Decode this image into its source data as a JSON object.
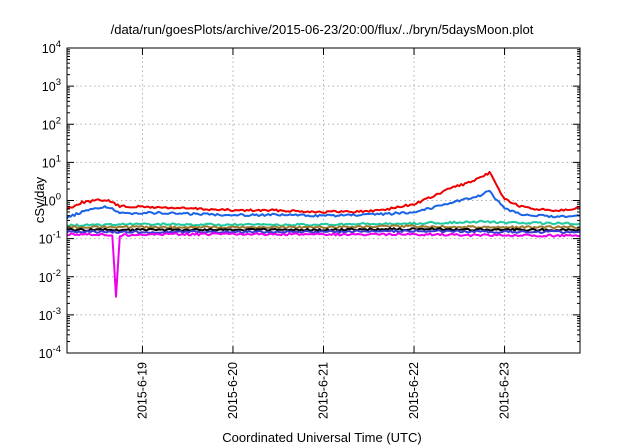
{
  "chart_data": {
    "type": "line",
    "title": "/data/run/goesPlots/archive/2015-06-23/20:00/flux/../bryn/5daysMoon.plot",
    "xlabel": "Coordinated Universal Time (UTC)",
    "ylabel": "cSv/day",
    "yscale": "log",
    "ylim": [
      0.0001,
      10000
    ],
    "xlim": [
      "2015-06-18T04:00",
      "2015-06-23T20:00"
    ],
    "grid": true,
    "y_ticks": [
      {
        "base": "10",
        "exp": "4",
        "value": 10000
      },
      {
        "base": "10",
        "exp": "3",
        "value": 1000
      },
      {
        "base": "10",
        "exp": "2",
        "value": 100
      },
      {
        "base": "10",
        "exp": "1",
        "value": 10
      },
      {
        "base": "10",
        "exp": "0",
        "value": 1
      },
      {
        "base": "10",
        "exp": "-1",
        "value": 0.1
      },
      {
        "base": "10",
        "exp": "-2",
        "value": 0.01
      },
      {
        "base": "10",
        "exp": "-3",
        "value": 0.001
      },
      {
        "base": "10",
        "exp": "-4",
        "value": 0.0001
      }
    ],
    "x_ticks": [
      {
        "label": "2015-6-19",
        "value": "2015-06-19T00:00"
      },
      {
        "label": "2015-6-20",
        "value": "2015-06-20T00:00"
      },
      {
        "label": "2015-6-21",
        "value": "2015-06-21T00:00"
      },
      {
        "label": "2015-6-22",
        "value": "2015-06-22T00:00"
      },
      {
        "label": "2015-6-23",
        "value": "2015-06-23T00:00"
      }
    ],
    "series": [
      {
        "color": "#ee0000",
        "x": [
          "2015-06-18T04:00",
          "2015-06-18T08:00",
          "2015-06-18T14:00",
          "2015-06-18T16:00",
          "2015-06-18T18:00",
          "2015-06-19T00:00",
          "2015-06-19T12:00",
          "2015-06-20T00:00",
          "2015-06-20T12:00",
          "2015-06-21T00:00",
          "2015-06-21T12:00",
          "2015-06-21T18:00",
          "2015-06-22T00:00",
          "2015-06-22T06:00",
          "2015-06-22T10:00",
          "2015-06-22T14:00",
          "2015-06-22T18:00",
          "2015-06-22T20:00",
          "2015-06-22T22:00",
          "2015-06-23T00:00",
          "2015-06-23T04:00",
          "2015-06-23T08:00",
          "2015-06-23T14:00",
          "2015-06-23T20:00"
        ],
        "values": [
          0.6,
          0.9,
          1.05,
          0.9,
          0.7,
          0.68,
          0.62,
          0.55,
          0.55,
          0.5,
          0.52,
          0.62,
          0.8,
          1.4,
          2.2,
          2.8,
          4.0,
          5.5,
          2.4,
          1.1,
          0.7,
          0.6,
          0.55,
          0.65
        ]
      },
      {
        "color": "#1a63e6",
        "x": [
          "2015-06-18T04:00",
          "2015-06-18T08:00",
          "2015-06-18T14:00",
          "2015-06-18T16:00",
          "2015-06-18T18:00",
          "2015-06-19T00:00",
          "2015-06-19T12:00",
          "2015-06-20T00:00",
          "2015-06-20T12:00",
          "2015-06-21T00:00",
          "2015-06-21T12:00",
          "2015-06-21T18:00",
          "2015-06-22T00:00",
          "2015-06-22T06:00",
          "2015-06-22T10:00",
          "2015-06-22T14:00",
          "2015-06-22T18:00",
          "2015-06-22T20:00",
          "2015-06-22T22:00",
          "2015-06-23T00:00",
          "2015-06-23T04:00",
          "2015-06-23T08:00",
          "2015-06-23T14:00",
          "2015-06-23T20:00"
        ],
        "values": [
          0.35,
          0.5,
          0.7,
          0.6,
          0.45,
          0.48,
          0.45,
          0.42,
          0.42,
          0.4,
          0.42,
          0.45,
          0.5,
          0.7,
          0.9,
          1.1,
          1.4,
          1.8,
          1.0,
          0.6,
          0.45,
          0.4,
          0.38,
          0.4
        ]
      },
      {
        "color": "#1dc9a0",
        "x": [
          "2015-06-18T04:00",
          "2015-06-19T00:00",
          "2015-06-20T00:00",
          "2015-06-21T00:00",
          "2015-06-22T00:00",
          "2015-06-22T18:00",
          "2015-06-23T00:00",
          "2015-06-23T20:00"
        ],
        "values": [
          0.22,
          0.24,
          0.23,
          0.23,
          0.25,
          0.28,
          0.26,
          0.25
        ]
      },
      {
        "color": "#a07830",
        "x": [
          "2015-06-18T04:00",
          "2015-06-19T00:00",
          "2015-06-20T00:00",
          "2015-06-21T00:00",
          "2015-06-22T00:00",
          "2015-06-23T00:00",
          "2015-06-23T20:00"
        ],
        "values": [
          0.2,
          0.2,
          0.2,
          0.2,
          0.21,
          0.2,
          0.2
        ]
      },
      {
        "color": "#000000",
        "x": [
          "2015-06-18T04:00",
          "2015-06-19T00:00",
          "2015-06-20T00:00",
          "2015-06-21T00:00",
          "2015-06-22T00:00",
          "2015-06-23T00:00",
          "2015-06-23T20:00"
        ],
        "values": [
          0.17,
          0.17,
          0.17,
          0.17,
          0.18,
          0.17,
          0.17
        ]
      },
      {
        "color": "#3b3bd6",
        "x": [
          "2015-06-18T04:00",
          "2015-06-19T00:00",
          "2015-06-20T00:00",
          "2015-06-21T00:00",
          "2015-06-22T00:00",
          "2015-06-23T00:00",
          "2015-06-23T20:00"
        ],
        "values": [
          0.15,
          0.15,
          0.15,
          0.15,
          0.16,
          0.15,
          0.15
        ]
      },
      {
        "color": "#ee00ee",
        "x": [
          "2015-06-18T04:00",
          "2015-06-18T12:00",
          "2015-06-18T16:00",
          "2015-06-18T17:00",
          "2015-06-18T18:00",
          "2015-06-19T00:00",
          "2015-06-20T00:00",
          "2015-06-21T00:00",
          "2015-06-22T00:00",
          "2015-06-23T00:00",
          "2015-06-23T20:00"
        ],
        "values": [
          0.13,
          0.13,
          0.12,
          0.003,
          0.12,
          0.13,
          0.13,
          0.13,
          0.13,
          0.12,
          0.12
        ]
      }
    ]
  }
}
